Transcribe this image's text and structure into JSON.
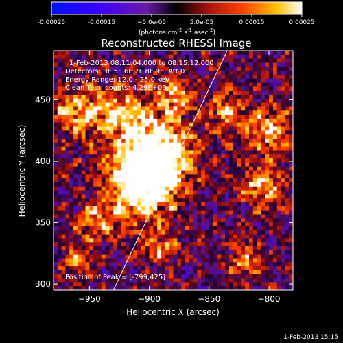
{
  "chart_data": {
    "type": "heatmap",
    "title": "Reconstructed RHESSI Image",
    "xlabel": "Heliocentric X (arcsec)",
    "ylabel": "Heliocentric Y (arcsec)",
    "xlim": [
      -980,
      -780
    ],
    "ylim": [
      295,
      490
    ],
    "x_ticks": [
      -950,
      -900,
      -850,
      -800
    ],
    "y_ticks": [
      300,
      350,
      400,
      450
    ],
    "x_tick_labels": [
      "−950",
      "−900",
      "−850",
      "−800"
    ],
    "y_tick_labels": [
      "300",
      "350",
      "400",
      "450"
    ],
    "colorbar": {
      "range": [
        -0.00025,
        0.00025
      ],
      "ticks": [
        -0.00025,
        -0.00015,
        -5e-05,
        5e-05,
        0.00015,
        0.00025
      ],
      "tick_labels": [
        "-0.00025",
        "-0.00015",
        "−5.0e-05",
        "5.0e-05",
        "0.00015",
        "0.00025"
      ],
      "unit_main": "(photons cm",
      "unit_sup1": "-2",
      "unit_mid": " s",
      "unit_sup2": "-1",
      "unit_mid2": " asec",
      "unit_sup3": "-2",
      "unit_end": ")"
    },
    "annotations": {
      "time_range": "1-Feb-2013 08:11:04.000 to 08:15:12.000",
      "detectors": "Detectors: 3F 5F 6F 7F 8F 9F, Att 0",
      "energy": "Energy Range: 12.0 - 25.0 keV",
      "clean": "Clean     Total counts: 4.29E+03",
      "peak": "Position of Peak = [-799,425]"
    },
    "limb_line": [
      {
        "x": -930,
        "y": 295
      },
      {
        "x": -835,
        "y": 490
      }
    ],
    "hot_regions": [
      {
        "x": -895,
        "y": 410,
        "r": 22,
        "level": 1.0
      },
      {
        "x": -910,
        "y": 375,
        "r": 18,
        "level": 0.9
      },
      {
        "x": -900,
        "y": 395,
        "r": 15,
        "level": 0.95
      },
      {
        "x": -960,
        "y": 440,
        "r": 14,
        "level": 0.75
      },
      {
        "x": -925,
        "y": 440,
        "r": 12,
        "level": 0.7
      },
      {
        "x": -800,
        "y": 425,
        "r": 12,
        "level": 0.85
      },
      {
        "x": -805,
        "y": 380,
        "r": 12,
        "level": 0.75
      },
      {
        "x": -835,
        "y": 440,
        "r": 10,
        "level": 0.7
      },
      {
        "x": -945,
        "y": 350,
        "r": 10,
        "level": 0.65
      },
      {
        "x": -880,
        "y": 455,
        "r": 10,
        "level": 0.7
      },
      {
        "x": -820,
        "y": 320,
        "r": 9,
        "level": 0.6
      },
      {
        "x": -890,
        "y": 330,
        "r": 9,
        "level": 0.6
      },
      {
        "x": -960,
        "y": 320,
        "r": 8,
        "level": 0.55
      }
    ]
  },
  "footer": {
    "timestamp": "1-Feb-2013 15:15"
  }
}
